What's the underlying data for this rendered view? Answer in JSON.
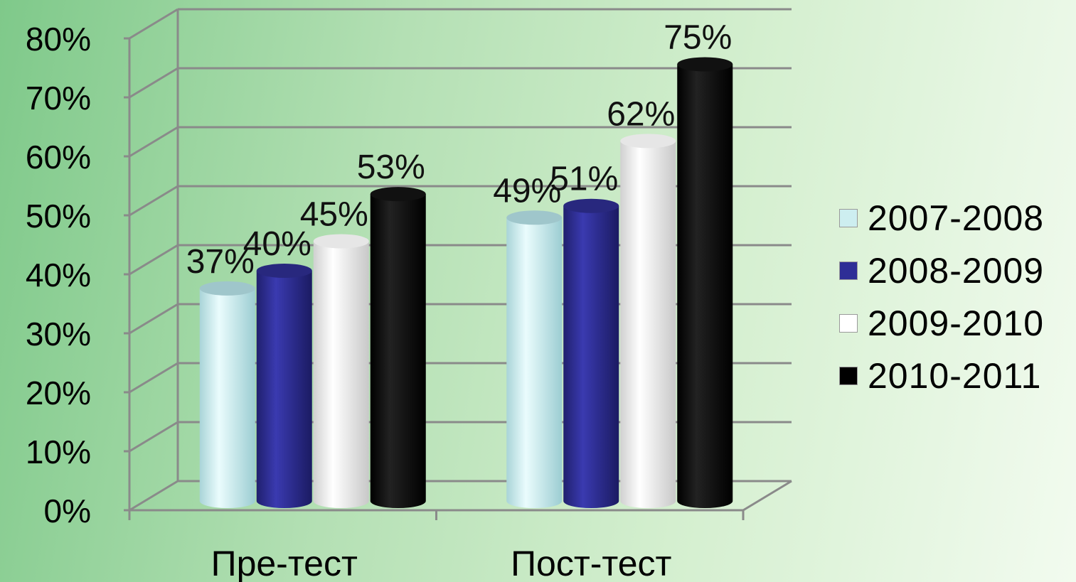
{
  "chart_data": {
    "type": "bar",
    "title": "",
    "xlabel": "",
    "ylabel": "",
    "ylim": [
      0,
      80
    ],
    "y_ticks": [
      "0%",
      "10%",
      "20%",
      "30%",
      "40%",
      "50%",
      "60%",
      "70%",
      "80%"
    ],
    "categories": [
      "Пре-тест",
      "Пост-тест"
    ],
    "series": [
      {
        "name": "2007-2008",
        "values": [
          37,
          49
        ],
        "labels": [
          "37%",
          "49%"
        ],
        "color": "#cdeef0"
      },
      {
        "name": "2008-2009",
        "values": [
          40,
          51
        ],
        "labels": [
          "40%",
          "51%"
        ],
        "color": "#2e2e96"
      },
      {
        "name": "2009-2010",
        "values": [
          45,
          62
        ],
        "labels": [
          "45%",
          "62%"
        ],
        "color": "#ffffff"
      },
      {
        "name": "2010-2011",
        "values": [
          53,
          75
        ],
        "labels": [
          "53%",
          "75%"
        ],
        "color": "#000000"
      }
    ],
    "grid": true,
    "legend_position": "right",
    "style": "3d-cylinder"
  }
}
